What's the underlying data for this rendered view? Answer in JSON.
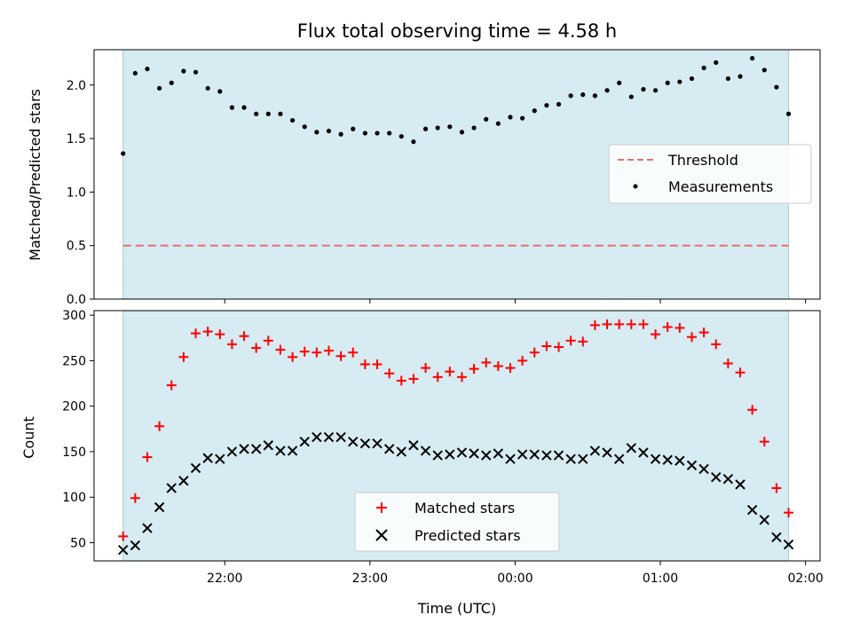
{
  "chart_data": [
    {
      "type": "scatter",
      "title": "Flux total observing time = 4.58 h",
      "ylabel": "Matched/Predicted stars",
      "xlabel": "",
      "ylim": [
        0,
        2.33
      ],
      "yticks": [
        "0.0",
        "0.5",
        "1.0",
        "1.5",
        "2.0"
      ],
      "ytick_values": [
        0,
        0.5,
        1.0,
        1.5,
        2.0
      ],
      "shaded_region": {
        "x_start": "21:18",
        "x_end": "01:53",
        "color": "#add8e6"
      },
      "legend_position": "center-right",
      "series": [
        {
          "name": "Threshold",
          "kind": "dashed-line",
          "color": "#e8706e",
          "x": [
            "21:18",
            "01:53"
          ],
          "values": [
            0.5,
            0.5
          ]
        },
        {
          "name": "Measurements",
          "kind": "dots",
          "color": "#000000",
          "x": [
            "21:18",
            "21:23",
            "21:28",
            "21:33",
            "21:38",
            "21:43",
            "21:48",
            "21:53",
            "21:58",
            "22:03",
            "22:08",
            "22:13",
            "22:18",
            "22:23",
            "22:28",
            "22:33",
            "22:38",
            "22:43",
            "22:48",
            "22:53",
            "22:58",
            "23:03",
            "23:08",
            "23:13",
            "23:18",
            "23:23",
            "23:28",
            "23:33",
            "23:38",
            "23:43",
            "23:48",
            "23:53",
            "23:58",
            "00:03",
            "00:08",
            "00:13",
            "00:18",
            "00:23",
            "00:28",
            "00:33",
            "00:38",
            "00:43",
            "00:48",
            "00:53",
            "00:58",
            "01:03",
            "01:08",
            "01:13",
            "01:18",
            "01:23",
            "01:28",
            "01:33",
            "01:38",
            "01:43",
            "01:48",
            "01:53"
          ],
          "values": [
            1.36,
            2.11,
            2.15,
            1.97,
            2.02,
            2.13,
            2.12,
            1.97,
            1.94,
            1.79,
            1.79,
            1.73,
            1.73,
            1.73,
            1.67,
            1.61,
            1.56,
            1.57,
            1.54,
            1.59,
            1.55,
            1.55,
            1.55,
            1.52,
            1.47,
            1.59,
            1.6,
            1.61,
            1.56,
            1.6,
            1.68,
            1.64,
            1.7,
            1.69,
            1.76,
            1.81,
            1.82,
            1.9,
            1.91,
            1.9,
            1.95,
            2.02,
            1.89,
            1.96,
            1.95,
            2.02,
            2.03,
            2.06,
            2.16,
            2.21,
            2.06,
            2.08,
            2.25,
            2.14,
            1.98,
            1.73
          ]
        }
      ]
    },
    {
      "type": "scatter",
      "title": "",
      "ylabel": "Count",
      "xlabel": "Time (UTC)",
      "ylim": [
        30,
        305
      ],
      "yticks": [
        "50",
        "100",
        "150",
        "200",
        "250",
        "300"
      ],
      "ytick_values": [
        50,
        100,
        150,
        200,
        250,
        300
      ],
      "xticks": [
        "22:00",
        "23:00",
        "00:00",
        "01:00",
        "02:00"
      ],
      "xlim": [
        "21:06",
        "02:06"
      ],
      "shaded_region": {
        "x_start": "21:18",
        "x_end": "01:53",
        "color": "#add8e6"
      },
      "legend_position": "lower-center",
      "series": [
        {
          "name": "Matched stars",
          "kind": "plus",
          "color": "#ff0000",
          "x": [
            "21:18",
            "21:23",
            "21:28",
            "21:33",
            "21:38",
            "21:43",
            "21:48",
            "21:53",
            "21:58",
            "22:03",
            "22:08",
            "22:13",
            "22:18",
            "22:23",
            "22:28",
            "22:33",
            "22:38",
            "22:43",
            "22:48",
            "22:53",
            "22:58",
            "23:03",
            "23:08",
            "23:13",
            "23:18",
            "23:23",
            "23:28",
            "23:33",
            "23:38",
            "23:43",
            "23:48",
            "23:53",
            "23:58",
            "00:03",
            "00:08",
            "00:13",
            "00:18",
            "00:23",
            "00:28",
            "00:33",
            "00:38",
            "00:43",
            "00:48",
            "00:53",
            "00:58",
            "01:03",
            "01:08",
            "01:13",
            "01:18",
            "01:23",
            "01:28",
            "01:33",
            "01:38",
            "01:43",
            "01:48",
            "01:53"
          ],
          "values": [
            57,
            99,
            144,
            178,
            223,
            254,
            280,
            282,
            279,
            268,
            277,
            264,
            272,
            262,
            254,
            260,
            259,
            261,
            255,
            259,
            246,
            246,
            236,
            228,
            230,
            242,
            232,
            238,
            232,
            241,
            248,
            244,
            242,
            250,
            259,
            266,
            265,
            272,
            271,
            289,
            290,
            290,
            290,
            290,
            279,
            287,
            286,
            276,
            281,
            268,
            247,
            237,
            196,
            161,
            110,
            83
          ]
        },
        {
          "name": "Predicted stars",
          "kind": "cross",
          "color": "#000000",
          "x": [
            "21:18",
            "21:23",
            "21:28",
            "21:33",
            "21:38",
            "21:43",
            "21:48",
            "21:53",
            "21:58",
            "22:03",
            "22:08",
            "22:13",
            "22:18",
            "22:23",
            "22:28",
            "22:33",
            "22:38",
            "22:43",
            "22:48",
            "22:53",
            "22:58",
            "23:03",
            "23:08",
            "23:13",
            "23:18",
            "23:23",
            "23:28",
            "23:33",
            "23:38",
            "23:43",
            "23:48",
            "23:53",
            "23:58",
            "00:03",
            "00:08",
            "00:13",
            "00:18",
            "00:23",
            "00:28",
            "00:33",
            "00:38",
            "00:43",
            "00:48",
            "00:53",
            "00:58",
            "01:03",
            "01:08",
            "01:13",
            "01:18",
            "01:23",
            "01:28",
            "01:33",
            "01:38",
            "01:43",
            "01:48",
            "01:53"
          ],
          "values": [
            42,
            47,
            66,
            89,
            110,
            118,
            132,
            143,
            142,
            150,
            153,
            153,
            157,
            151,
            151,
            161,
            166,
            166,
            166,
            161,
            159,
            159,
            153,
            150,
            157,
            151,
            146,
            147,
            149,
            148,
            146,
            148,
            142,
            147,
            147,
            146,
            146,
            142,
            142,
            151,
            149,
            142,
            154,
            149,
            142,
            141,
            140,
            135,
            131,
            122,
            120,
            114,
            86,
            75,
            56,
            48
          ]
        }
      ]
    }
  ]
}
